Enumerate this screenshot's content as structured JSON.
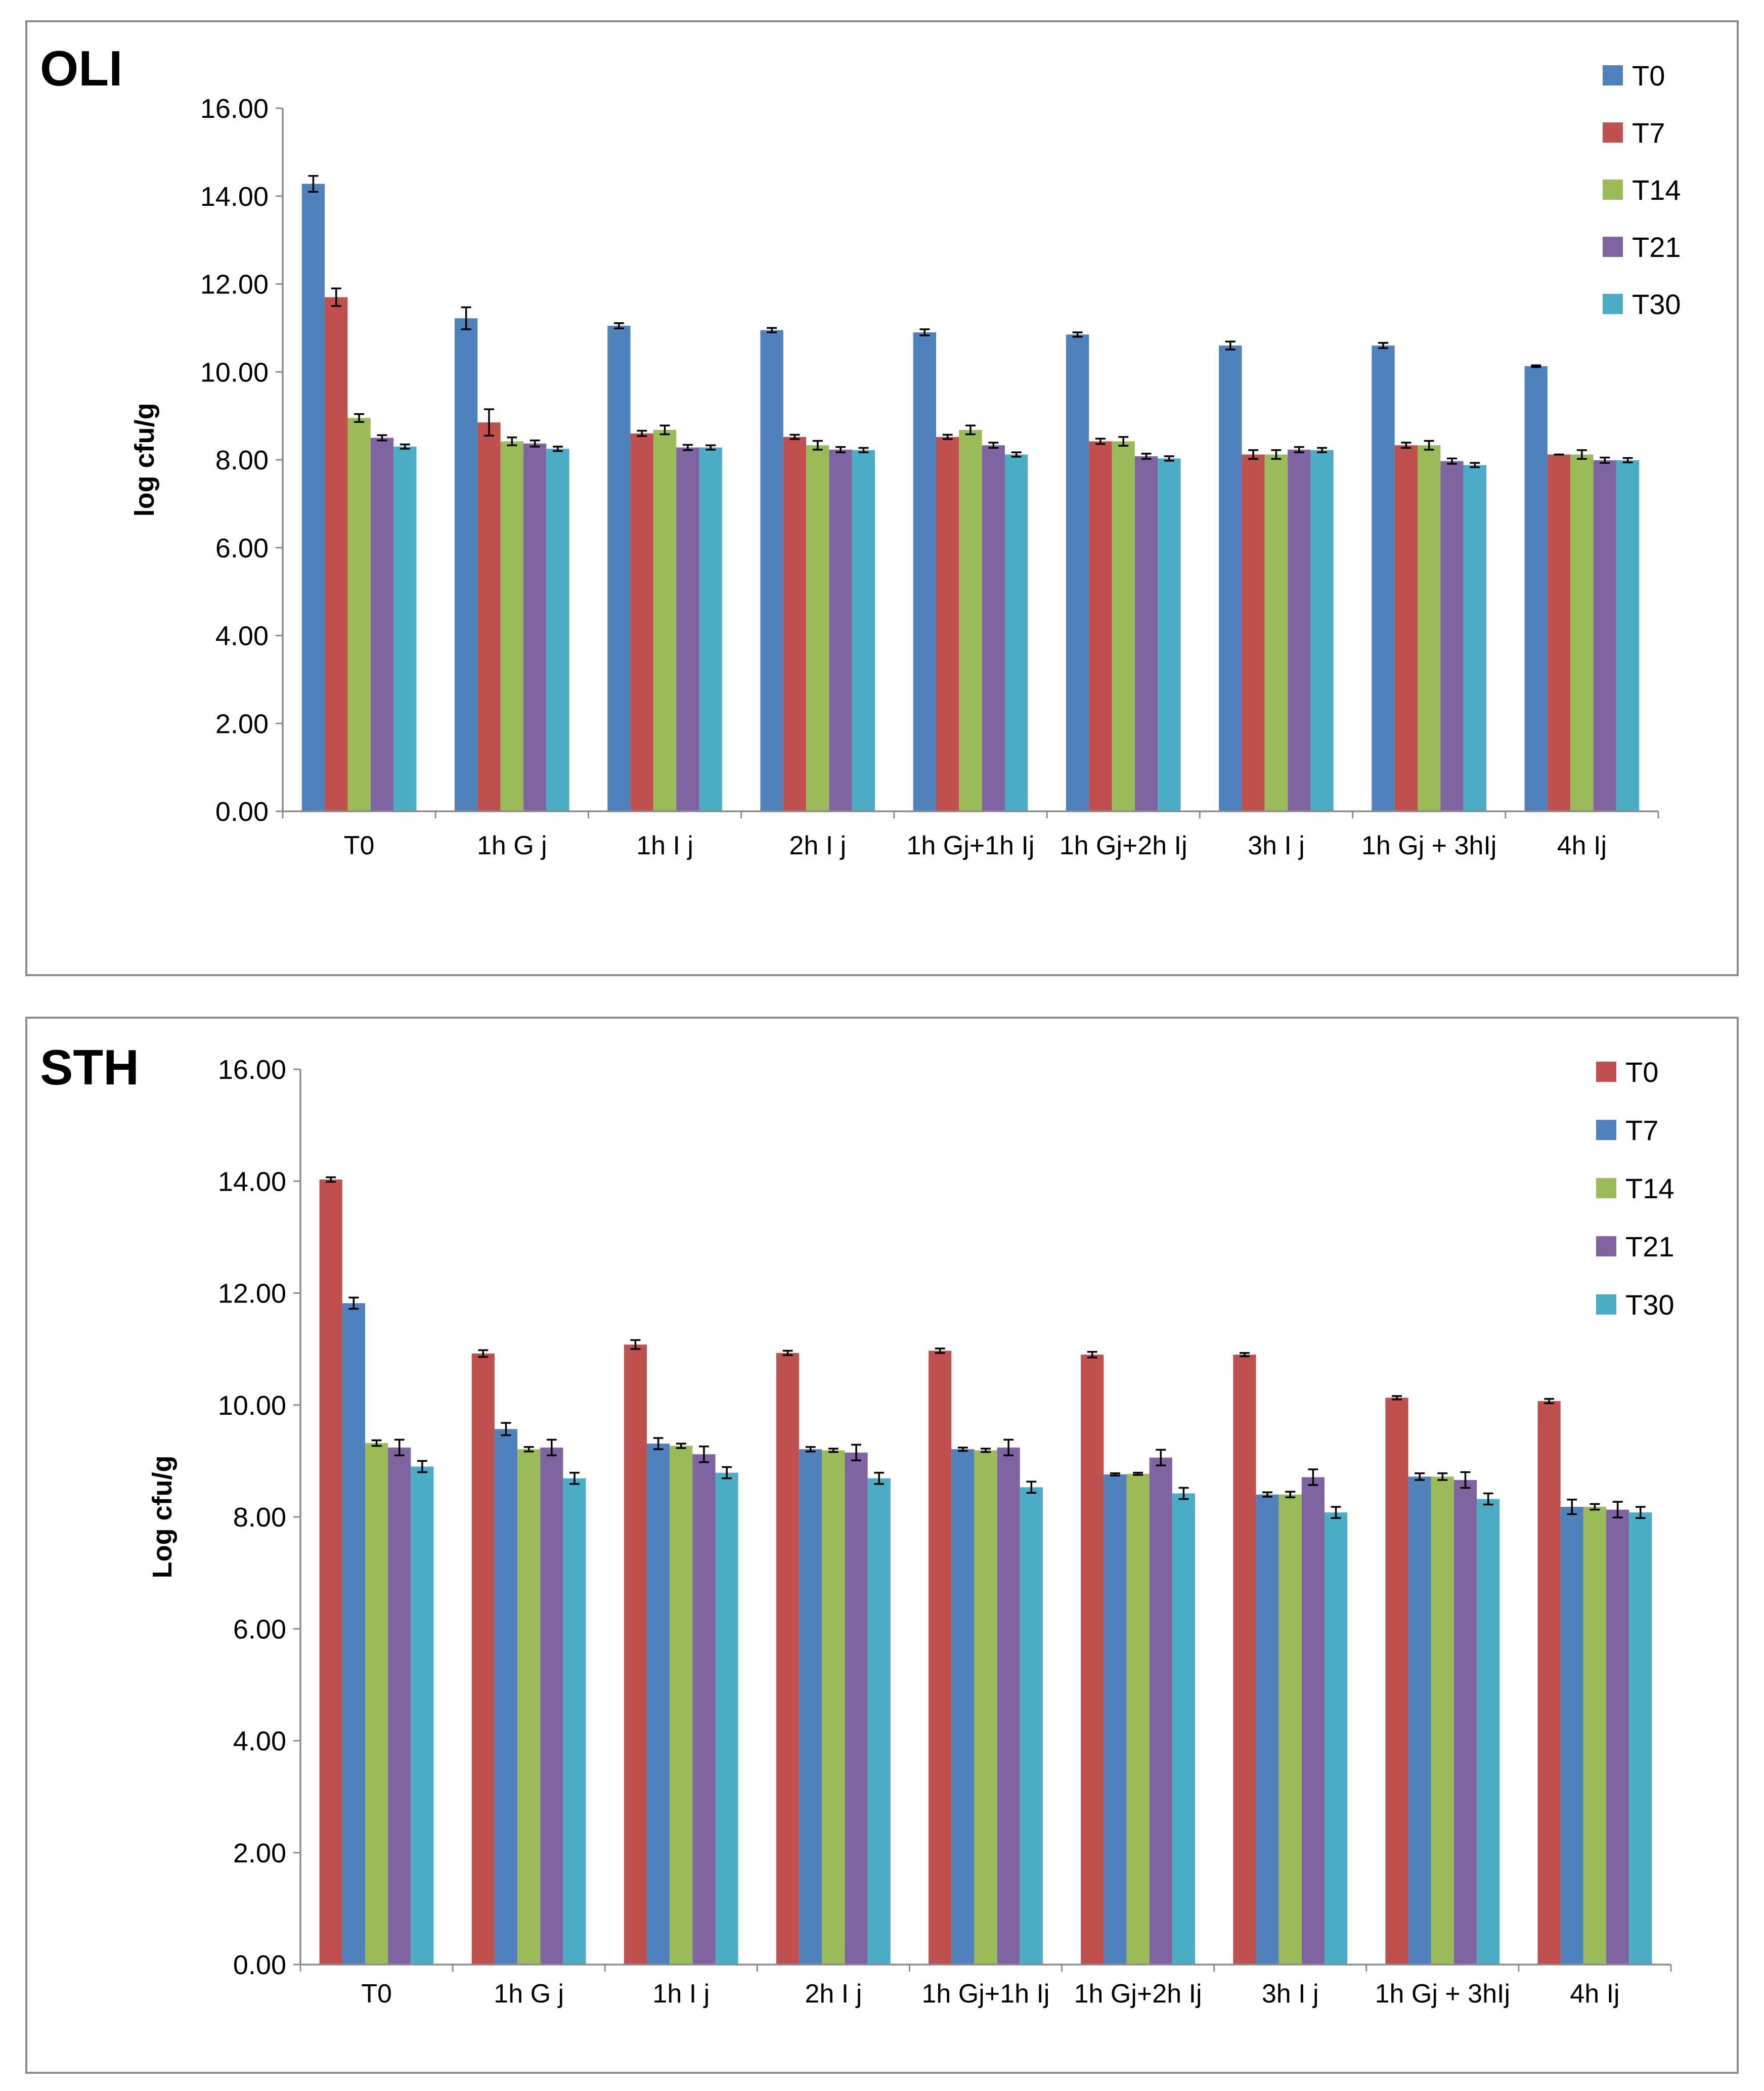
{
  "chart_data": [
    {
      "type": "bar",
      "title": "OLI",
      "xlabel": "",
      "ylabel": "log cfu/g",
      "ylim": [
        0,
        16
      ],
      "yticks": [
        "0.00",
        "2.00",
        "4.00",
        "6.00",
        "8.00",
        "10.00",
        "12.00",
        "14.00",
        "16.00"
      ],
      "grid": false,
      "legend_position": "top-right",
      "categories": [
        "T0",
        "1h G j",
        "1h I j",
        "2h I j",
        "1h Gj+1h Ij",
        "1h Gj+2h Ij",
        "3h I j",
        "1h Gj + 3hIj",
        "4h Ij"
      ],
      "series": [
        {
          "name": "T0",
          "color": "#4f81bd",
          "values": [
            14.28,
            11.22,
            11.05,
            10.95,
            10.9,
            10.85,
            10.6,
            10.6,
            10.13
          ],
          "errors": [
            0.18,
            0.25,
            0.06,
            0.05,
            0.07,
            0.05,
            0.09,
            0.06,
            0.02
          ]
        },
        {
          "name": "T7",
          "color": "#c0504d",
          "values": [
            11.7,
            8.85,
            8.6,
            8.52,
            8.52,
            8.42,
            8.12,
            8.33,
            8.12
          ],
          "errors": [
            0.2,
            0.3,
            0.06,
            0.05,
            0.05,
            0.06,
            0.1,
            0.06,
            0.0
          ]
        },
        {
          "name": "T14",
          "color": "#9bbb59",
          "values": [
            8.95,
            8.42,
            8.68,
            8.33,
            8.68,
            8.42,
            8.12,
            8.33,
            8.12
          ],
          "errors": [
            0.09,
            0.09,
            0.1,
            0.1,
            0.1,
            0.1,
            0.1,
            0.1,
            0.1
          ]
        },
        {
          "name": "T21",
          "color": "#8064a2",
          "values": [
            8.5,
            8.37,
            8.28,
            8.23,
            8.33,
            8.08,
            8.23,
            7.97,
            7.99
          ],
          "errors": [
            0.06,
            0.07,
            0.06,
            0.06,
            0.06,
            0.06,
            0.06,
            0.06,
            0.06
          ]
        },
        {
          "name": "T30",
          "color": "#4bacc6",
          "values": [
            8.3,
            8.25,
            8.28,
            8.22,
            8.12,
            8.03,
            8.22,
            7.88,
            7.99
          ],
          "errors": [
            0.05,
            0.05,
            0.05,
            0.05,
            0.05,
            0.05,
            0.05,
            0.05,
            0.05
          ]
        }
      ]
    },
    {
      "type": "bar",
      "title": "STH",
      "xlabel": "",
      "ylabel": "Log cfu/g",
      "ylim": [
        0,
        16
      ],
      "yticks": [
        "0.00",
        "2.00",
        "4.00",
        "6.00",
        "8.00",
        "10.00",
        "12.00",
        "14.00",
        "16.00"
      ],
      "grid": false,
      "legend_position": "top-right",
      "categories": [
        "T0",
        "1h G j",
        "1h I j",
        "2h I j",
        "1h Gj+1h Ij",
        "1h Gj+2h Ij",
        "3h I j",
        "1h Gj + 3hIj",
        "4h Ij"
      ],
      "series": [
        {
          "name": "T0",
          "color": "#c0504d",
          "values": [
            14.03,
            10.92,
            11.08,
            10.93,
            10.97,
            10.9,
            10.9,
            10.13,
            10.07
          ],
          "errors": [
            0.04,
            0.06,
            0.08,
            0.04,
            0.04,
            0.05,
            0.03,
            0.03,
            0.04
          ]
        },
        {
          "name": "T7",
          "color": "#4f81bd",
          "values": [
            11.82,
            9.57,
            9.31,
            9.21,
            9.21,
            8.76,
            8.4,
            8.72,
            8.18
          ],
          "errors": [
            0.1,
            0.11,
            0.1,
            0.04,
            0.03,
            0.02,
            0.04,
            0.06,
            0.13
          ]
        },
        {
          "name": "T14",
          "color": "#9bbb59",
          "values": [
            9.32,
            9.21,
            9.27,
            9.19,
            9.19,
            8.77,
            8.4,
            8.72,
            8.18
          ],
          "errors": [
            0.05,
            0.04,
            0.04,
            0.03,
            0.03,
            0.02,
            0.05,
            0.06,
            0.05
          ]
        },
        {
          "name": "T21",
          "color": "#8064a2",
          "values": [
            9.24,
            9.24,
            9.12,
            9.15,
            9.24,
            9.06,
            8.71,
            8.66,
            8.13
          ],
          "errors": [
            0.14,
            0.14,
            0.14,
            0.14,
            0.14,
            0.14,
            0.14,
            0.14,
            0.14
          ]
        },
        {
          "name": "T30",
          "color": "#4bacc6",
          "values": [
            8.9,
            8.69,
            8.79,
            8.69,
            8.53,
            8.42,
            8.08,
            8.32,
            8.08
          ],
          "errors": [
            0.1,
            0.1,
            0.1,
            0.1,
            0.1,
            0.1,
            0.1,
            0.1,
            0.1
          ]
        }
      ]
    }
  ]
}
